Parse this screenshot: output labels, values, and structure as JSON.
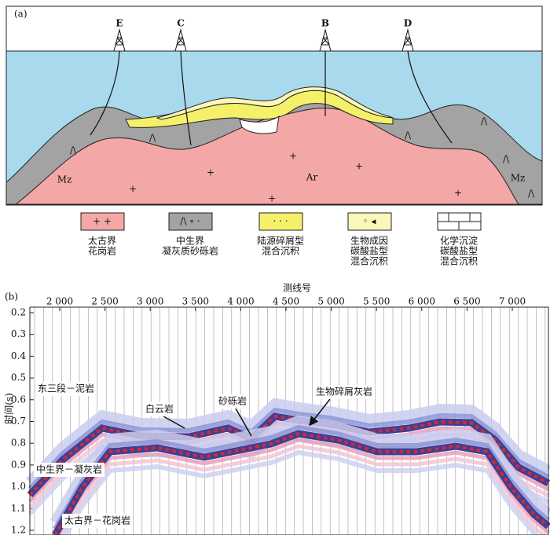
{
  "panel_a": {
    "label": "(a)",
    "wells": [
      "E",
      "C",
      "B",
      "D"
    ],
    "rock_labels": [
      "Mz",
      "Ar",
      "Mz"
    ],
    "legend": [
      {
        "lines": [
          "太古界",
          "花岗岩"
        ]
      },
      {
        "lines": [
          "中生界",
          "凝灰质砂砾岩"
        ]
      },
      {
        "lines": [
          "陆源碎屑型",
          "混合沉积"
        ]
      },
      {
        "lines": [
          "生物成因",
          "碳酸盐型",
          "混合沉积"
        ]
      },
      {
        "lines": [
          "化学沉淀",
          "碳酸盐型",
          "混合沉积"
        ]
      }
    ]
  },
  "panel_b": {
    "label": "(b)",
    "x_title": "测线号",
    "y_title": "时间(s)",
    "x_ticks": [
      "2 000",
      "2 500",
      "3 000",
      "3 500",
      "4 000",
      "4 500",
      "5 000",
      "5 500",
      "6 000",
      "6 500",
      "7 000"
    ],
    "y_ticks": [
      "0.2",
      "0.3",
      "0.4",
      "0.5",
      "0.6",
      "0.7",
      "0.8",
      "0.9",
      "1.0",
      "1.1",
      "1.2"
    ],
    "annotations": [
      "东三段－泥岩",
      "白云岩",
      "砂砾岩",
      "生物碎屑灰岩",
      "中生界－凝灰岩",
      "太古界－花岗岩"
    ]
  }
}
